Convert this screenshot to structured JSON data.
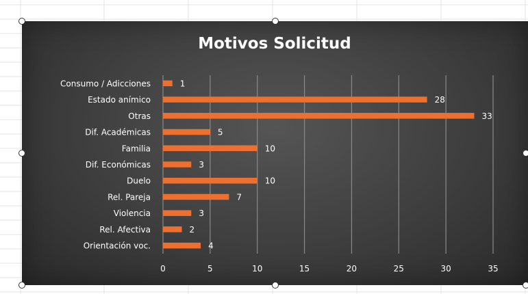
{
  "chart_data": {
    "type": "bar",
    "orientation": "horizontal",
    "title": "Motivos Solicitud",
    "categories": [
      "Consumo / Adicciones",
      "Estado anímico",
      "Otras",
      "Dif. Académicas",
      "Familia",
      "Dif. Económicas",
      "Duelo",
      "Rel. Pareja",
      "Violencia",
      "Rel. Afectiva",
      "Orientación voc."
    ],
    "values": [
      1,
      28,
      33,
      5,
      10,
      3,
      10,
      7,
      3,
      2,
      4
    ],
    "xlim": [
      0,
      35
    ],
    "xticks": [
      0,
      5,
      10,
      15,
      20,
      25,
      30,
      35
    ],
    "grid": true,
    "legend": "none",
    "bar_color": "#ed7031",
    "background_color": "#404040",
    "text_color": "#ffffff"
  }
}
